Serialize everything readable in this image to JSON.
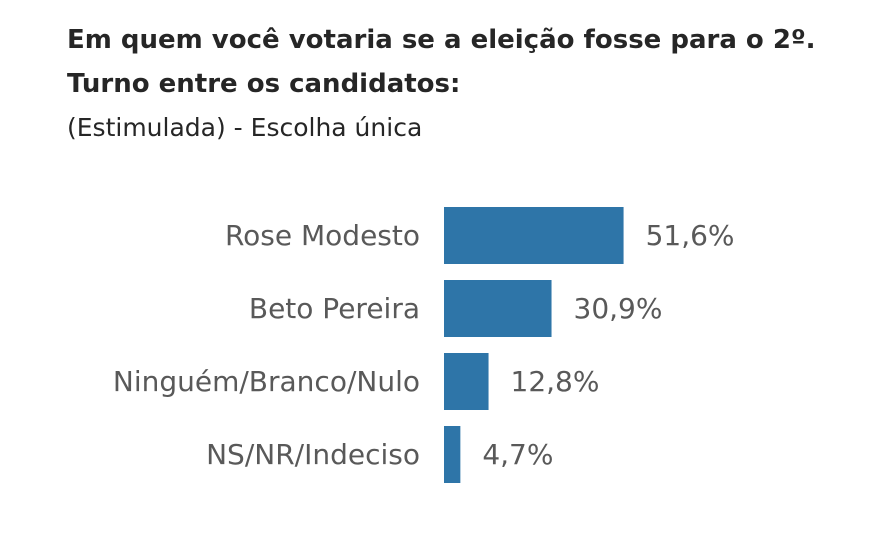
{
  "chart_data": {
    "type": "bar",
    "orientation": "horizontal",
    "title": "Em quem você votaria se a eleição fosse para o 2º. Turno entre os candidatos:",
    "subtitle": "(Estimulada) - Escolha única",
    "categories": [
      "Rose Modesto",
      "Beto Pereira",
      "Ninguém/Branco/Nulo",
      "NS/NR/Indeciso"
    ],
    "values": [
      51.6,
      30.9,
      12.8,
      4.7
    ],
    "value_labels": [
      "51,6%",
      "30,9%",
      "12,8%",
      "4,7%"
    ],
    "unit": "%",
    "bar_color": "#2e75a8",
    "grid": false,
    "legend": "none"
  }
}
